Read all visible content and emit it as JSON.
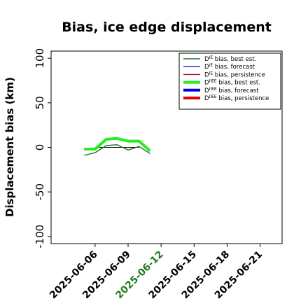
{
  "chart_data": {
    "type": "line",
    "title": "Bias, ice edge displacement",
    "ylabel": "Displacement bias (km)",
    "xlabel": "",
    "ylim": [
      -108,
      108
    ],
    "xlim": [
      "2025-06-02",
      "2025-06-23"
    ],
    "yticks": [
      -100,
      -50,
      0,
      50,
      100
    ],
    "xticks": [
      "2025-06-06",
      "2025-06-09",
      "2025-06-12",
      "2025-06-15",
      "2025-06-18",
      "2025-06-21"
    ],
    "highlighted_xtick": "2025-06-12",
    "highlight_color": "#1e7d1e",
    "grid": false,
    "legend_position": "top-right",
    "series": [
      {
        "name": "D$^{IE}$ bias, best est.",
        "legend_main": "D",
        "legend_sup": "IE",
        "legend_rest": " bias, best est.",
        "color": "#1f6e1f",
        "width": 1.4,
        "x": [
          "2025-06-05",
          "2025-06-06",
          "2025-06-07",
          "2025-06-08",
          "2025-06-09",
          "2025-06-10",
          "2025-06-11"
        ],
        "y": [
          -9,
          -6,
          2,
          3,
          -3,
          1,
          -7
        ]
      },
      {
        "name": "D$^{IE}$ bias, forecast",
        "legend_main": "D",
        "legend_sup": "IE",
        "legend_rest": " bias, forecast",
        "color": "#1a1acc",
        "width": 1.4,
        "x": [],
        "y": []
      },
      {
        "name": "D$^{IE}$ bias, persistence",
        "legend_main": "D",
        "legend_sup": "IE",
        "legend_rest": " bias, persistence",
        "color": "#8b1a1a",
        "width": 1.4,
        "x": [],
        "y": []
      },
      {
        "name": "D$^{IIEE}$ bias, best est.",
        "legend_main": "D",
        "legend_sup": "IIEE",
        "legend_rest": " bias, best est.",
        "color": "#22ee22",
        "width": 4,
        "x": [
          "2025-06-05",
          "2025-06-06",
          "2025-06-07",
          "2025-06-08",
          "2025-06-09",
          "2025-06-10",
          "2025-06-11"
        ],
        "y": [
          -2,
          -2,
          9,
          10,
          7,
          7,
          -4
        ]
      },
      {
        "name": "D$^{IIEE}$ bias, forecast",
        "legend_main": "D",
        "legend_sup": "IIEE",
        "legend_rest": " bias, forecast",
        "color": "#0000ee",
        "width": 4,
        "x": [],
        "y": []
      },
      {
        "name": "D$^{IIEE}$ bias, persistence",
        "legend_main": "D",
        "legend_sup": "IIEE",
        "legend_rest": " bias, persistence",
        "color": "#ee0000",
        "width": 4,
        "x": [],
        "y": []
      }
    ],
    "reference_line": {
      "y": 0,
      "color": "#000000",
      "start": "2025-06-06",
      "end": "2025-06-10"
    }
  }
}
